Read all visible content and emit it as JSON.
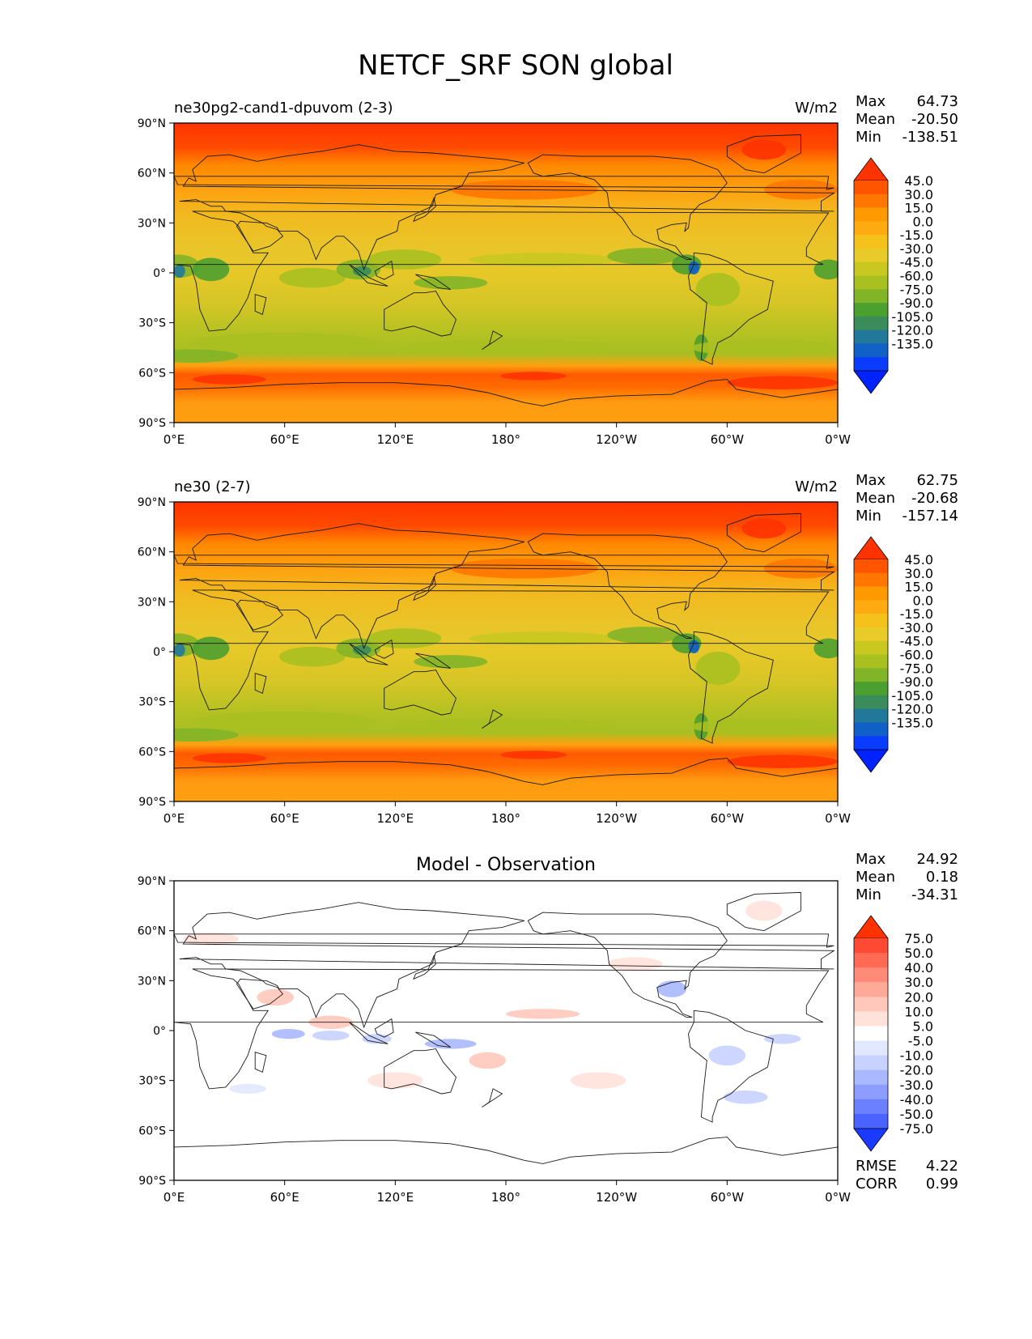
{
  "title": "NETCF_SRF SON global",
  "lat_ticks": [
    "90°N",
    "60°N",
    "30°N",
    "0°",
    "30°S",
    "60°S",
    "90°S"
  ],
  "lon_ticks": [
    "0°E",
    "60°E",
    "120°E",
    "180°",
    "120°W",
    "60°W",
    "0°W"
  ],
  "panels": [
    {
      "id": "test",
      "left_title": "ne30pg2-cand1-dpuvom (2-3)",
      "center_title": "",
      "units": "W/m2",
      "stats": [
        [
          "Max",
          "64.73"
        ],
        [
          "Mean",
          "-20.50"
        ],
        [
          "Min",
          "-138.51"
        ]
      ],
      "colorbar_labels": [
        "45.0",
        "30.0",
        "15.0",
        "0.0",
        "-15.0",
        "-30.0",
        "-45.0",
        "-60.0",
        "-75.0",
        "-90.0",
        "-105.0",
        "-120.0",
        "-135.0"
      ],
      "colorbar_colors": [
        "#ff3300",
        "#ff5500",
        "#ff7700",
        "#ff9900",
        "#ffaa11",
        "#f5c21c",
        "#e8cb28",
        "#c8c820",
        "#a8c020",
        "#82b428",
        "#4ca030",
        "#3a8c5a",
        "#22789a",
        "#1060c8",
        "#0a3cff",
        "#0022ff"
      ],
      "bottom_stats": []
    },
    {
      "id": "ref",
      "left_title": "ne30 (2-7)",
      "center_title": "",
      "units": "W/m2",
      "stats": [
        [
          "Max",
          "62.75"
        ],
        [
          "Mean",
          "-20.68"
        ],
        [
          "Min",
          "-157.14"
        ]
      ],
      "colorbar_labels": [
        "45.0",
        "30.0",
        "15.0",
        "0.0",
        "-15.0",
        "-30.0",
        "-45.0",
        "-60.0",
        "-75.0",
        "-90.0",
        "-105.0",
        "-120.0",
        "-135.0"
      ],
      "colorbar_colors": [
        "#ff3300",
        "#ff5500",
        "#ff7700",
        "#ff9900",
        "#ffaa11",
        "#f5c21c",
        "#e8cb28",
        "#c8c820",
        "#a8c020",
        "#82b428",
        "#4ca030",
        "#3a8c5a",
        "#22789a",
        "#1060c8",
        "#0a3cff",
        "#0022ff"
      ],
      "bottom_stats": []
    },
    {
      "id": "diff",
      "left_title": "",
      "center_title": "Model - Observation",
      "units": "",
      "stats": [
        [
          "Max",
          "24.92"
        ],
        [
          "Mean",
          "0.18"
        ],
        [
          "Min",
          "-34.31"
        ]
      ],
      "colorbar_labels": [
        "75.0",
        "50.0",
        "40.0",
        "30.0",
        "20.0",
        "10.0",
        "5.0",
        "-5.0",
        "-10.0",
        "-20.0",
        "-30.0",
        "-40.0",
        "-50.0",
        "-75.0"
      ],
      "colorbar_colors": [
        "#ff3300",
        "#ff4a33",
        "#ff6a55",
        "#ff8a77",
        "#ffaa99",
        "#ffc8bb",
        "#ffe2da",
        "#ffffff",
        "#e2e8ff",
        "#c8d2ff",
        "#aab8ff",
        "#8c9cff",
        "#6a80ff",
        "#4a62ff",
        "#1a3aff"
      ],
      "bottom_stats": [
        [
          "RMSE",
          "4.22"
        ],
        [
          "CORR",
          "0.99"
        ]
      ]
    }
  ]
}
